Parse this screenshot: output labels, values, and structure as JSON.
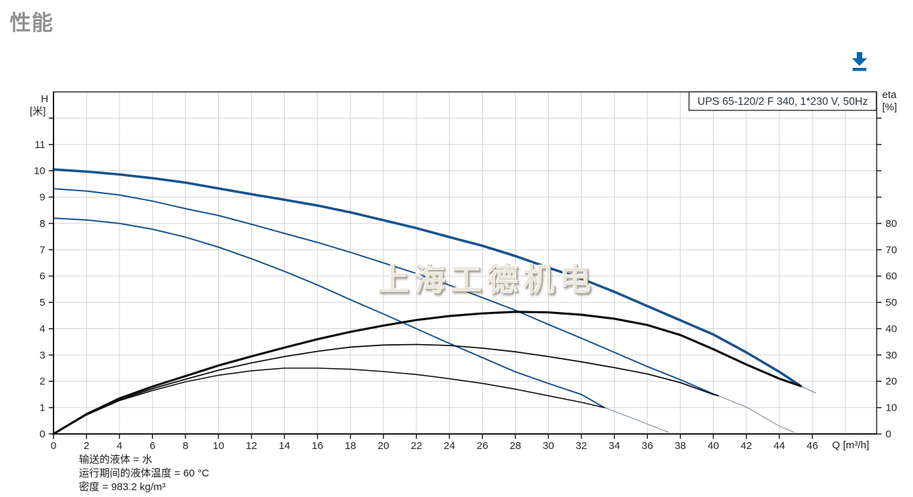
{
  "page": {
    "title": "性能"
  },
  "toolbar": {
    "download_icon": "download-icon",
    "accent_color": "#0068b0"
  },
  "footnotes": {
    "lines": [
      "输送的液体 = 水",
      "运行期间的液体温度 = 60 °C",
      "密度 = 983.2 kg/m³"
    ]
  },
  "chart_data": {
    "type": "line",
    "legend": "UPS 65-120/2 F 340, 1*230 V, 50Hz",
    "watermark": "上海工德机电",
    "grid": true,
    "legend_position": "top-right",
    "colors": {
      "head_curve": "#17538f",
      "eta_curve": "#101010",
      "extension": "#8494a4",
      "gridline": "#d2d2d2",
      "axis": "#1a1a1a"
    },
    "x_axis": {
      "label": "Q [m³/h]",
      "min": 0,
      "max": 49.9,
      "tick_values": [
        0,
        2,
        4,
        6,
        8,
        10,
        12,
        14,
        16,
        18,
        20,
        22,
        24,
        26,
        28,
        30,
        32,
        34,
        36,
        38,
        40,
        42,
        44,
        46
      ],
      "grid_values": [
        2,
        4,
        6,
        8,
        10,
        12,
        14,
        16,
        18,
        20,
        22,
        24,
        26,
        28,
        30,
        32,
        34,
        36,
        38,
        40,
        42,
        44,
        46,
        48
      ]
    },
    "y_left_axis": {
      "label_line1": "H",
      "label_line2": "[米]",
      "min": 0,
      "max": 13,
      "label_values": [
        0,
        1,
        2,
        3,
        4,
        5,
        6,
        7,
        8,
        9,
        10,
        11
      ],
      "tick_values": [
        0,
        1,
        2,
        3,
        4,
        5,
        6,
        7,
        8,
        9,
        10,
        11,
        12
      ],
      "grid_values": [
        1,
        2,
        3,
        4,
        5,
        6,
        7,
        8,
        9,
        10,
        11,
        12
      ]
    },
    "y_right_axis": {
      "label_line1": "eta",
      "label_line2": "[%]",
      "min": 0,
      "max": 130,
      "label_values": [
        0,
        10,
        20,
        30,
        40,
        50,
        60,
        70,
        80
      ],
      "tick_values": [
        0,
        10,
        20,
        30,
        40,
        50,
        60,
        70,
        80,
        90,
        100,
        110,
        120
      ]
    },
    "series": [
      {
        "name": "head-speed1-extension",
        "role": "head-extension",
        "axis": "left",
        "color": "#8494a4",
        "width": 1.2,
        "points": [
          [
            33.4,
            1.0
          ],
          [
            35,
            0.62
          ],
          [
            37.3,
            0.06
          ]
        ]
      },
      {
        "name": "head-speed2-extension",
        "role": "head-extension",
        "axis": "left",
        "color": "#8494a4",
        "width": 1.2,
        "points": [
          [
            40.3,
            1.45
          ],
          [
            42,
            1.02
          ],
          [
            44,
            0.3
          ],
          [
            44.9,
            0.06
          ]
        ]
      },
      {
        "name": "head-speed3-extension",
        "role": "head-extension",
        "axis": "left",
        "color": "#8494a4",
        "width": 1.4,
        "points": [
          [
            45.3,
            1.82
          ],
          [
            46.2,
            1.56
          ]
        ]
      },
      {
        "name": "head-speed1",
        "role": "head",
        "axis": "left",
        "color": "#17538f",
        "width": 2,
        "points": [
          [
            0,
            8.2
          ],
          [
            2,
            8.13
          ],
          [
            4,
            8.0
          ],
          [
            6,
            7.78
          ],
          [
            8,
            7.48
          ],
          [
            10,
            7.1
          ],
          [
            12,
            6.66
          ],
          [
            14,
            6.18
          ],
          [
            16,
            5.66
          ],
          [
            18,
            5.1
          ],
          [
            20,
            4.56
          ],
          [
            22,
            4.0
          ],
          [
            24,
            3.44
          ],
          [
            26,
            2.9
          ],
          [
            28,
            2.36
          ],
          [
            30,
            1.92
          ],
          [
            32,
            1.5
          ],
          [
            33.4,
            1.0
          ]
        ]
      },
      {
        "name": "head-speed2",
        "role": "head",
        "axis": "left",
        "color": "#17538f",
        "width": 2,
        "points": [
          [
            0,
            9.32
          ],
          [
            2,
            9.23
          ],
          [
            4,
            9.08
          ],
          [
            6,
            8.85
          ],
          [
            8,
            8.56
          ],
          [
            10,
            8.3
          ],
          [
            12,
            7.97
          ],
          [
            14,
            7.62
          ],
          [
            16,
            7.28
          ],
          [
            18,
            6.9
          ],
          [
            20,
            6.5
          ],
          [
            22,
            6.1
          ],
          [
            24,
            5.65
          ],
          [
            26,
            5.18
          ],
          [
            28,
            4.7
          ],
          [
            30,
            4.16
          ],
          [
            32,
            3.64
          ],
          [
            34,
            3.1
          ],
          [
            36,
            2.56
          ],
          [
            38,
            2.06
          ],
          [
            40,
            1.52
          ],
          [
            40.3,
            1.45
          ]
        ]
      },
      {
        "name": "head-speed3",
        "role": "head",
        "axis": "left",
        "color": "#17538f",
        "width": 3.6,
        "points": [
          [
            0,
            10.05
          ],
          [
            2,
            9.97
          ],
          [
            4,
            9.86
          ],
          [
            6,
            9.72
          ],
          [
            8,
            9.55
          ],
          [
            10,
            9.33
          ],
          [
            12,
            9.11
          ],
          [
            14,
            8.9
          ],
          [
            16,
            8.68
          ],
          [
            18,
            8.42
          ],
          [
            20,
            8.12
          ],
          [
            22,
            7.82
          ],
          [
            24,
            7.48
          ],
          [
            26,
            7.15
          ],
          [
            28,
            6.76
          ],
          [
            30,
            6.32
          ],
          [
            32,
            5.9
          ],
          [
            34,
            5.4
          ],
          [
            36,
            4.86
          ],
          [
            38,
            4.32
          ],
          [
            40,
            3.78
          ],
          [
            42,
            3.1
          ],
          [
            44,
            2.36
          ],
          [
            45.3,
            1.82
          ]
        ]
      },
      {
        "name": "eta-speed1",
        "role": "efficiency",
        "axis": "right",
        "color": "#101010",
        "width": 1.6,
        "points": [
          [
            0,
            0
          ],
          [
            2,
            7.2
          ],
          [
            4,
            12.7
          ],
          [
            6,
            16.5
          ],
          [
            8,
            19.8
          ],
          [
            10,
            22.3
          ],
          [
            12,
            24
          ],
          [
            14,
            25
          ],
          [
            16,
            25
          ],
          [
            18,
            24.6
          ],
          [
            20,
            23.7
          ],
          [
            22,
            22.6
          ],
          [
            24,
            21
          ],
          [
            26,
            19.2
          ],
          [
            28,
            17
          ],
          [
            30,
            14.5
          ],
          [
            32,
            12
          ],
          [
            33.4,
            10
          ]
        ]
      },
      {
        "name": "eta-speed2",
        "role": "efficiency",
        "axis": "right",
        "color": "#101010",
        "width": 1.8,
        "points": [
          [
            0,
            0
          ],
          [
            2,
            7.3
          ],
          [
            4,
            13
          ],
          [
            6,
            17.2
          ],
          [
            8,
            20.8
          ],
          [
            10,
            24.2
          ],
          [
            12,
            27
          ],
          [
            14,
            29.4
          ],
          [
            16,
            31.4
          ],
          [
            18,
            33
          ],
          [
            20,
            33.8
          ],
          [
            22,
            34
          ],
          [
            24,
            33.6
          ],
          [
            26,
            32.6
          ],
          [
            28,
            31.2
          ],
          [
            30,
            29.4
          ],
          [
            32,
            27.4
          ],
          [
            34,
            25.2
          ],
          [
            36,
            22.8
          ],
          [
            38,
            19.5
          ],
          [
            40,
            15
          ],
          [
            40.3,
            14.5
          ]
        ]
      },
      {
        "name": "eta-speed3",
        "role": "efficiency",
        "axis": "right",
        "color": "#0d0d0d",
        "width": 3.2,
        "points": [
          [
            0,
            0
          ],
          [
            2,
            7.5
          ],
          [
            4,
            13.5
          ],
          [
            6,
            18
          ],
          [
            8,
            22
          ],
          [
            10,
            26
          ],
          [
            12,
            29.5
          ],
          [
            14,
            32.8
          ],
          [
            16,
            36
          ],
          [
            18,
            38.8
          ],
          [
            20,
            41.2
          ],
          [
            22,
            43.3
          ],
          [
            24,
            44.8
          ],
          [
            26,
            45.8
          ],
          [
            28,
            46.4
          ],
          [
            30,
            46.2
          ],
          [
            32,
            45.3
          ],
          [
            34,
            43.8
          ],
          [
            36,
            41.4
          ],
          [
            38,
            37.6
          ],
          [
            40,
            32.2
          ],
          [
            42,
            26.4
          ],
          [
            44,
            21
          ],
          [
            45.3,
            18.2
          ]
        ]
      }
    ]
  }
}
